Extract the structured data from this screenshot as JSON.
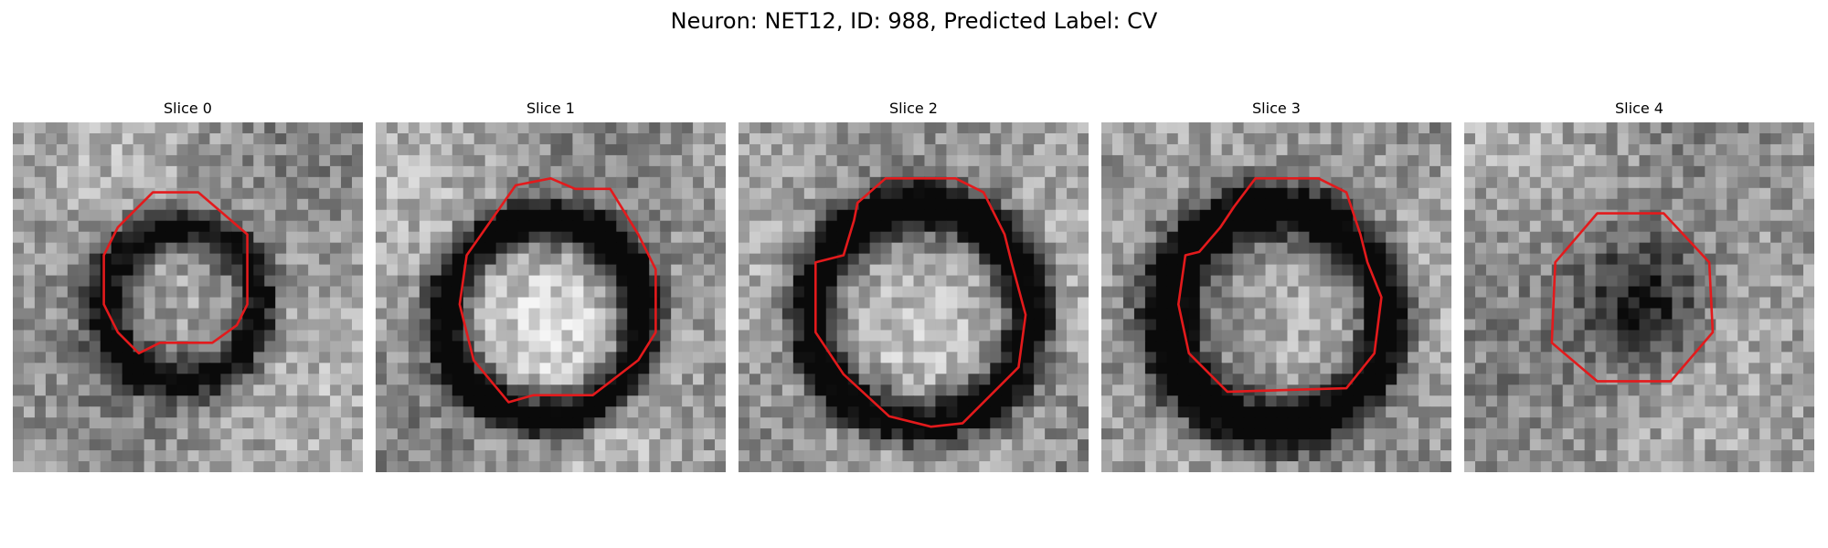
{
  "figure": {
    "title": "Neuron: NET12, ID: 988, Predicted Label: CV"
  },
  "colors": {
    "background": "#ffffff",
    "contour": "#e31a1c",
    "grayscale_dark": "#1a1a1a",
    "grayscale_light": "#e8e8e8"
  },
  "slices": [
    {
      "title": "Slice 0",
      "image": "grayscale-microscopy-patch",
      "overlay": "red-octagon-contour"
    },
    {
      "title": "Slice 1",
      "image": "grayscale-microscopy-patch",
      "overlay": "red-octagon-contour"
    },
    {
      "title": "Slice 2",
      "image": "grayscale-microscopy-patch",
      "overlay": "red-octagon-contour"
    },
    {
      "title": "Slice 3",
      "image": "grayscale-microscopy-patch",
      "overlay": "red-octagon-contour"
    },
    {
      "title": "Slice 4",
      "image": "grayscale-microscopy-patch",
      "overlay": "red-octagon-contour"
    }
  ]
}
